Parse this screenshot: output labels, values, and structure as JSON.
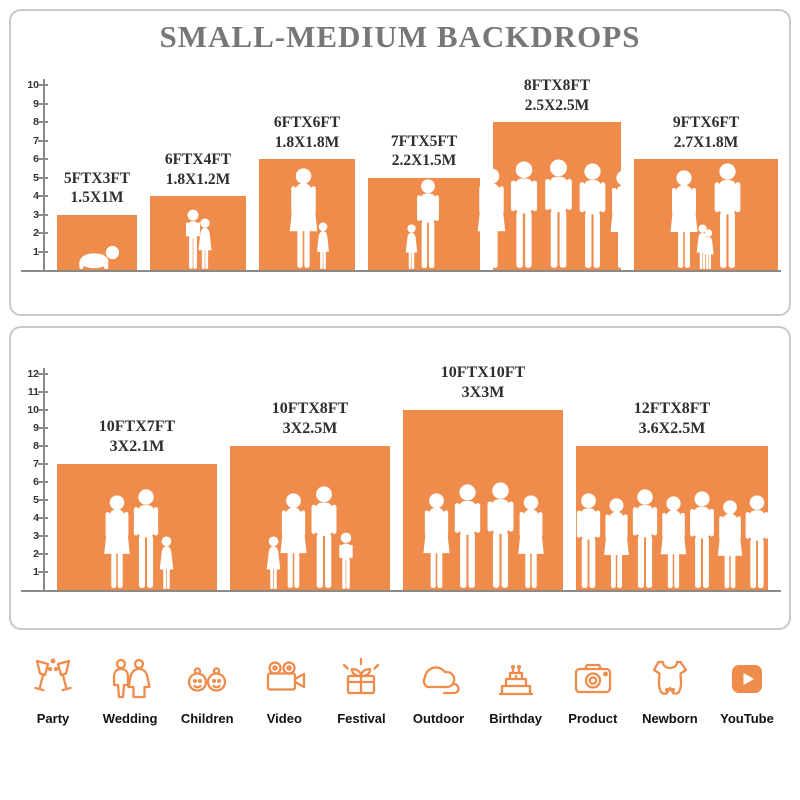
{
  "title": "SMALL-MEDIUM BACKDROPS",
  "colors": {
    "accent": "#EF8C4C",
    "title_gray": "#777777",
    "label_dark": "#2E2E2E",
    "ruler": "#8A8A8A",
    "panel_border": "#C9C9C9",
    "silhouette": "#FFFFFF",
    "category_label": "#111111"
  },
  "panel_small": {
    "ruler_max": 10,
    "backdrops": [
      {
        "size_ft": "5FTX3FT",
        "size_m": "1.5X1M",
        "width_ft": 5,
        "height_ft": 3,
        "figures": [
          {
            "k": "baby",
            "h": 1.35
          }
        ]
      },
      {
        "size_ft": "6FTX4FT",
        "size_m": "1.8X1.2M",
        "width_ft": 6,
        "height_ft": 4,
        "figures": [
          {
            "k": "child-m",
            "h": 3.3
          },
          {
            "k": "child-f",
            "h": 2.8
          }
        ]
      },
      {
        "size_ft": "6FTX6FT",
        "size_m": "1.8X1.8M",
        "width_ft": 6,
        "height_ft": 6,
        "figures": [
          {
            "k": "adult-f",
            "h": 5.5
          },
          {
            "k": "child-f",
            "h": 2.6
          }
        ]
      },
      {
        "size_ft": "7FTX5FT",
        "size_m": "2.2X1.5M",
        "width_ft": 7,
        "height_ft": 5,
        "figures": [
          {
            "k": "child-f",
            "h": 2.5
          },
          {
            "k": "adult-m",
            "h": 4.9
          }
        ]
      },
      {
        "size_ft": "8FTX8FT",
        "size_m": "2.5X2.5M",
        "width_ft": 8,
        "height_ft": 8,
        "figures": [
          {
            "k": "adult-f",
            "h": 5.5
          },
          {
            "k": "adult-m",
            "h": 5.9
          },
          {
            "k": "adult-m",
            "h": 6.0
          },
          {
            "k": "adult-m",
            "h": 5.8
          },
          {
            "k": "adult-f",
            "h": 5.4
          }
        ]
      },
      {
        "size_ft": "9FTX6FT",
        "size_m": "2.7X1.8M",
        "width_ft": 9,
        "height_ft": 6,
        "figures": [
          {
            "k": "adult-f",
            "h": 5.4
          },
          {
            "k": "child-f",
            "h": 2.5
          },
          {
            "k": "child-f",
            "h": 2.2
          },
          {
            "k": "adult-m",
            "h": 5.8
          }
        ]
      }
    ]
  },
  "panel_medium": {
    "ruler_max": 12,
    "backdrops": [
      {
        "size_ft": "10FTX7FT",
        "size_m": "3X2.1M",
        "width_ft": 10,
        "height_ft": 7,
        "figures": [
          {
            "k": "adult-f",
            "h": 5.3
          },
          {
            "k": "adult-m",
            "h": 5.6
          },
          {
            "k": "child-f",
            "h": 3.0
          }
        ]
      },
      {
        "size_ft": "10FTX8FT",
        "size_m": "3X2.5M",
        "width_ft": 10,
        "height_ft": 8,
        "figures": [
          {
            "k": "child-f",
            "h": 3.0
          },
          {
            "k": "adult-f",
            "h": 5.4
          },
          {
            "k": "adult-m",
            "h": 5.8
          },
          {
            "k": "child-m",
            "h": 3.2
          }
        ]
      },
      {
        "size_ft": "10FTX10FT",
        "size_m": "3X3M",
        "width_ft": 10,
        "height_ft": 10,
        "figures": [
          {
            "k": "adult-f",
            "h": 5.4
          },
          {
            "k": "adult-m",
            "h": 5.9
          },
          {
            "k": "adult-m",
            "h": 6.0
          },
          {
            "k": "adult-f",
            "h": 5.3
          }
        ]
      },
      {
        "size_ft": "12FTX8FT",
        "size_m": "3.6X2.5M",
        "width_ft": 12,
        "height_ft": 8,
        "figures": [
          {
            "k": "adult-m",
            "h": 5.4
          },
          {
            "k": "adult-f",
            "h": 5.1
          },
          {
            "k": "adult-m",
            "h": 5.6
          },
          {
            "k": "adult-f",
            "h": 5.2
          },
          {
            "k": "adult-m",
            "h": 5.5
          },
          {
            "k": "adult-f",
            "h": 5.0
          },
          {
            "k": "adult-m",
            "h": 5.3
          }
        ]
      }
    ]
  },
  "categories": [
    {
      "label": "Party",
      "icon": "party-icon"
    },
    {
      "label": "Wedding",
      "icon": "wedding-icon"
    },
    {
      "label": "Children",
      "icon": "children-icon"
    },
    {
      "label": "Video",
      "icon": "video-icon"
    },
    {
      "label": "Festival",
      "icon": "festival-icon"
    },
    {
      "label": "Outdoor",
      "icon": "outdoor-icon"
    },
    {
      "label": "Birthday",
      "icon": "birthday-icon"
    },
    {
      "label": "Product",
      "icon": "product-icon"
    },
    {
      "label": "Newborn",
      "icon": "newborn-icon"
    },
    {
      "label": "YouTube",
      "icon": "youtube-icon"
    }
  ]
}
